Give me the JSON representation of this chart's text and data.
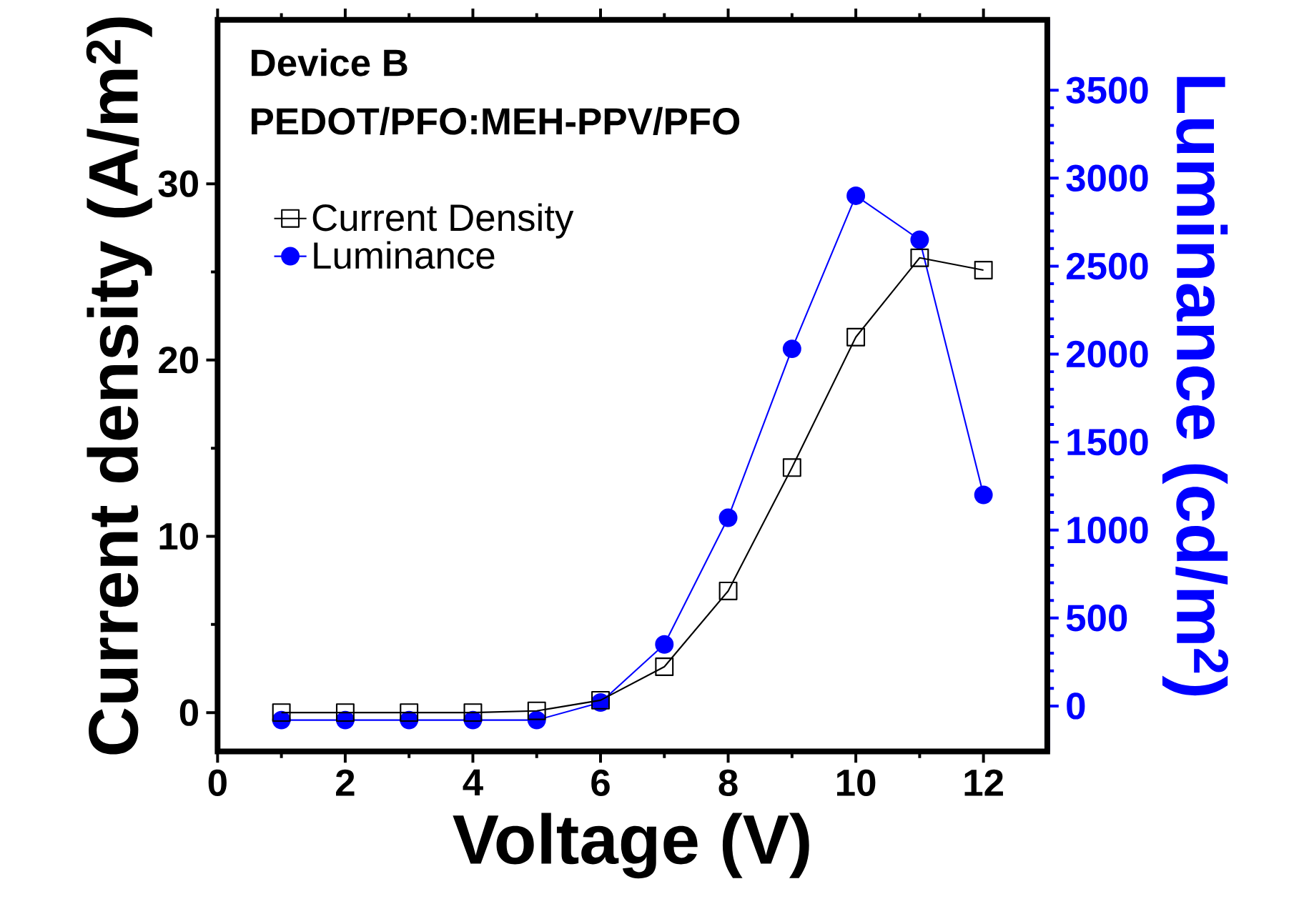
{
  "chart_data": {
    "type": "line",
    "title": "Device B",
    "subtitle": "PEDOT/PFO:MEH-PPV/PFO",
    "xlabel": "Voltage  (V)",
    "ylabel": "Current density  (A/m$^{2}$)",
    "y2label": "Luminance  (cd/m$^{2}$)",
    "x": [
      1,
      2,
      3,
      4,
      5,
      6,
      7,
      8,
      9,
      10,
      11,
      12
    ],
    "series": [
      {
        "name": "Current Density",
        "color": "#000000",
        "marker": "square",
        "values": [
          0,
          0,
          0,
          0,
          0.1,
          0.7,
          2.6,
          6.9,
          13.9,
          21.3,
          25.8,
          25.1
        ]
      },
      {
        "name": "Luminance",
        "color": "#0000ff",
        "marker": "circle",
        "axis": "y2",
        "values": [
          -80,
          -80,
          -80,
          -80,
          -80,
          20,
          350,
          1070,
          2030,
          2900,
          2650,
          1200
        ]
      }
    ],
    "xlim": [
      0,
      13
    ],
    "xticks": [
      0,
      2,
      4,
      6,
      8,
      10,
      12
    ],
    "ylim": [
      -2.2,
      39.3
    ],
    "yticks": [
      0,
      10,
      20,
      30
    ],
    "y2lim": [
      -258,
      3900
    ],
    "y2ticks": [
      0,
      500,
      1000,
      1500,
      2000,
      2500,
      3000,
      3500
    ],
    "legend": "top left",
    "grid": false,
    "line_style": "solid"
  }
}
